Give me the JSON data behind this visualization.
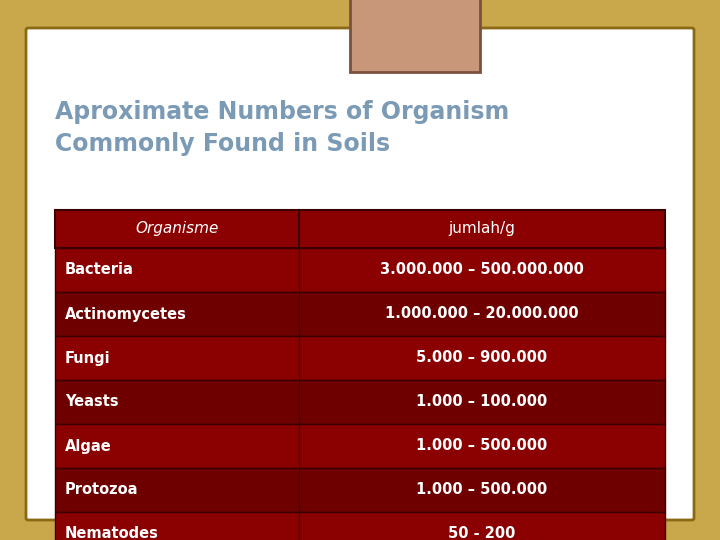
{
  "title": "Aproximate Numbers of Organism\nCommonly Found in Soils",
  "title_color": "#7a9ab5",
  "title_fontsize": 17,
  "background_outer": "#c8a84b",
  "background_inner": "#ffffff",
  "header_bg": "#8b0000",
  "header_text_color": "#ffffff",
  "header_col1": "Organisme",
  "header_col2": "jumlah/g",
  "row_bg_even": "#8b0000",
  "row_bg_odd": "#6e0000",
  "row_text_color": "#ffffff",
  "rows": [
    [
      "Bacteria",
      "3.000.000 – 500.000.000"
    ],
    [
      "Actinomycetes",
      "1.000.000 – 20.000.000"
    ],
    [
      "Fungi",
      "5.000 – 900.000"
    ],
    [
      "Yeasts",
      "1.000 – 100.000"
    ],
    [
      "Algae",
      "1.000 – 500.000"
    ],
    [
      "Protozoa",
      "1.000 – 500.000"
    ],
    [
      "Nematodes",
      "50 - 200"
    ]
  ],
  "accent_box_color": "#c8977a",
  "accent_box_border": "#7a5040",
  "card_border": "#8b6914",
  "table_border": "#3a0000"
}
